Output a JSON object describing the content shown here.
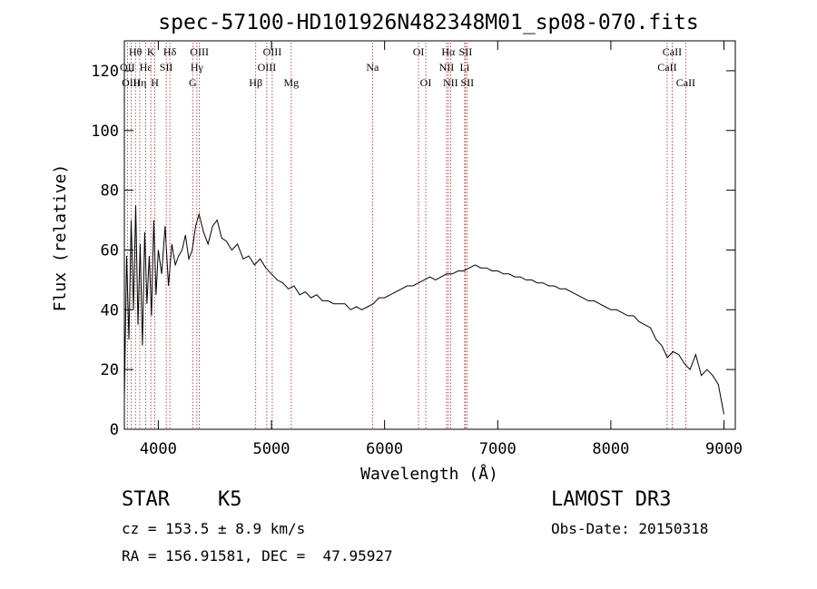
{
  "chart_data": {
    "type": "line",
    "title": "spec-57100-HD101926N482348M01_sp08-070.fits",
    "xlabel": "Wavelength (Å)",
    "ylabel": "Flux (relative)",
    "xlim": [
      3700,
      9100
    ],
    "ylim": [
      0,
      130
    ],
    "xticks": [
      4000,
      5000,
      6000,
      7000,
      8000,
      9000
    ],
    "yticks": [
      0,
      20,
      40,
      60,
      80,
      100,
      120
    ],
    "grid": false,
    "legend": "none",
    "line_color": "#000000",
    "marker_color": "#b22222",
    "series": [
      {
        "x": [
          3700,
          3720,
          3740,
          3760,
          3780,
          3800,
          3820,
          3840,
          3860,
          3880,
          3900,
          3920,
          3940,
          3960,
          3980,
          4000,
          4030,
          4060,
          4090,
          4120,
          4150,
          4180,
          4210,
          4240,
          4270,
          4300,
          4330,
          4360,
          4400,
          4440,
          4480,
          4520,
          4560,
          4600,
          4650,
          4700,
          4750,
          4800,
          4850,
          4900,
          4950,
          5000,
          5050,
          5100,
          5150,
          5200,
          5250,
          5300,
          5350,
          5400,
          5450,
          5500,
          5550,
          5600,
          5650,
          5700,
          5750,
          5800,
          5850,
          5900,
          5950,
          6000,
          6050,
          6100,
          6150,
          6200,
          6250,
          6300,
          6350,
          6400,
          6450,
          6500,
          6550,
          6600,
          6650,
          6700,
          6750,
          6800,
          6850,
          6900,
          6950,
          7000,
          7050,
          7100,
          7150,
          7200,
          7250,
          7300,
          7350,
          7400,
          7450,
          7500,
          7550,
          7600,
          7650,
          7700,
          7750,
          7800,
          7850,
          7900,
          7950,
          8000,
          8050,
          8100,
          8150,
          8200,
          8250,
          8300,
          8350,
          8400,
          8450,
          8500,
          8550,
          8600,
          8650,
          8700,
          8750,
          8800,
          8850,
          8900,
          8950,
          9000
        ],
        "y": [
          10,
          58,
          30,
          70,
          40,
          75,
          35,
          62,
          28,
          66,
          42,
          58,
          38,
          70,
          45,
          60,
          52,
          68,
          48,
          62,
          55,
          58,
          60,
          65,
          57,
          60,
          68,
          72,
          66,
          62,
          68,
          70,
          64,
          63,
          60,
          62,
          57,
          58,
          55,
          57,
          54,
          52,
          50,
          49,
          47,
          48,
          45,
          46,
          44,
          45,
          43,
          43,
          42,
          42,
          42,
          40,
          41,
          40,
          41,
          42,
          44,
          44,
          45,
          46,
          47,
          48,
          48,
          49,
          50,
          51,
          50,
          51,
          52,
          52,
          53,
          53,
          54,
          55,
          54,
          54,
          53,
          53,
          52,
          52,
          51,
          51,
          50,
          50,
          49,
          49,
          48,
          48,
          47,
          47,
          46,
          45,
          44,
          43,
          43,
          42,
          41,
          40,
          40,
          39,
          38,
          38,
          36,
          35,
          34,
          30,
          28,
          24,
          26,
          25,
          22,
          20,
          25,
          18,
          20,
          18,
          15,
          5
        ]
      }
    ],
    "lines": [
      {
        "label": "Hθ",
        "x": 3798,
        "row": 1
      },
      {
        "label": "OII",
        "x": 3727,
        "row": 2
      },
      {
        "label": "OIII",
        "x": 3760,
        "row": 3
      },
      {
        "label": "K",
        "x": 3934,
        "row": 1
      },
      {
        "label": "Hε",
        "x": 3889,
        "row": 2
      },
      {
        "label": "Hη",
        "x": 3836,
        "row": 3
      },
      {
        "label": "SII",
        "x": 4070,
        "row": 2
      },
      {
        "label": "H",
        "x": 3969,
        "row": 3
      },
      {
        "label": "Hδ",
        "x": 4102,
        "row": 1
      },
      {
        "label": "OIII",
        "x": 4363,
        "row": 1
      },
      {
        "label": "Hγ",
        "x": 4341,
        "row": 2
      },
      {
        "label": "G",
        "x": 4304,
        "row": 3
      },
      {
        "label": "Hβ",
        "x": 4861,
        "row": 3
      },
      {
        "label": "OIII",
        "x": 5007,
        "row": 1
      },
      {
        "label": "OIII",
        "x": 4959,
        "row": 2
      },
      {
        "label": "Mg",
        "x": 5175,
        "row": 3
      },
      {
        "label": "Na",
        "x": 5893,
        "row": 2
      },
      {
        "label": "OI",
        "x": 6300,
        "row": 1
      },
      {
        "label": "OI",
        "x": 6364,
        "row": 3
      },
      {
        "label": "Hα",
        "x": 6563,
        "row": 1
      },
      {
        "label": "NII",
        "x": 6548,
        "row": 2
      },
      {
        "label": "NII",
        "x": 6583,
        "row": 3
      },
      {
        "label": "SII",
        "x": 6716,
        "row": 1
      },
      {
        "label": "Li",
        "x": 6708,
        "row": 2
      },
      {
        "label": "SII",
        "x": 6731,
        "row": 3
      },
      {
        "label": "CaII",
        "x": 8542,
        "row": 1
      },
      {
        "label": "CaII",
        "x": 8498,
        "row": 2
      },
      {
        "label": "CaII",
        "x": 8662,
        "row": 3
      }
    ]
  },
  "info": {
    "class_label": "STAR",
    "subclass_label": "K5",
    "survey": "LAMOST DR3",
    "cz": "cz = 153.5 ± 8.9 km/s",
    "obs_date": "Obs-Date: 20150318",
    "coords": "RA = 156.91581, DEC =  47.95927"
  }
}
